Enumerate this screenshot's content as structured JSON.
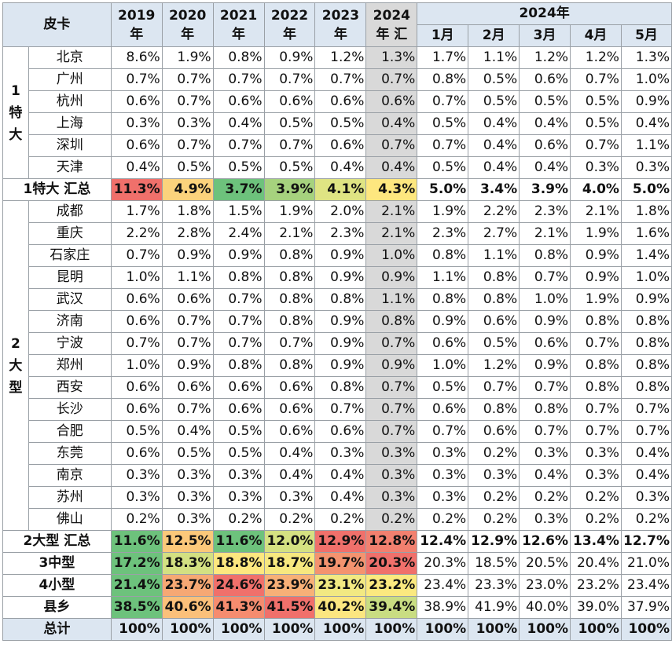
{
  "chart_data": {
    "type": "table",
    "corner_label": "皮卡",
    "year_headers": [
      [
        "2019",
        "年"
      ],
      [
        "2020",
        "年"
      ],
      [
        "2021",
        "年"
      ],
      [
        "2022",
        "年"
      ],
      [
        "2023",
        "年"
      ],
      [
        "2024",
        "年 汇"
      ]
    ],
    "month_group_label": "2024年",
    "month_headers": [
      "1月",
      "2月",
      "3月",
      "4月",
      "5月"
    ],
    "groups": [
      {
        "label": "1特大",
        "rows": [
          {
            "city": "北京",
            "values": [
              "8.6%",
              "1.9%",
              "0.8%",
              "0.9%",
              "1.2%",
              "1.3%",
              "1.7%",
              "1.1%",
              "1.2%",
              "1.2%",
              "1.3%"
            ]
          },
          {
            "city": "广州",
            "values": [
              "0.7%",
              "0.7%",
              "0.7%",
              "0.7%",
              "0.7%",
              "0.7%",
              "0.8%",
              "0.5%",
              "0.6%",
              "0.7%",
              "1.0%"
            ]
          },
          {
            "city": "杭州",
            "values": [
              "0.6%",
              "0.7%",
              "0.6%",
              "0.6%",
              "0.6%",
              "0.6%",
              "0.7%",
              "0.5%",
              "0.5%",
              "0.5%",
              "0.9%"
            ]
          },
          {
            "city": "上海",
            "values": [
              "0.3%",
              "0.3%",
              "0.4%",
              "0.5%",
              "0.5%",
              "0.4%",
              "0.5%",
              "0.4%",
              "0.4%",
              "0.5%",
              "0.4%"
            ]
          },
          {
            "city": "深圳",
            "values": [
              "0.6%",
              "0.7%",
              "0.7%",
              "0.7%",
              "0.6%",
              "0.7%",
              "0.7%",
              "0.4%",
              "0.6%",
              "0.7%",
              "1.1%"
            ]
          },
          {
            "city": "天津",
            "values": [
              "0.4%",
              "0.5%",
              "0.5%",
              "0.5%",
              "0.4%",
              "0.4%",
              "0.5%",
              "0.4%",
              "0.4%",
              "0.3%",
              "0.3%"
            ]
          }
        ],
        "summary": {
          "label": "1特大 汇总",
          "values": [
            "11.3%",
            "4.9%",
            "3.7%",
            "3.9%",
            "4.1%",
            "4.3%",
            "5.0%",
            "3.4%",
            "3.9%",
            "4.0%",
            "5.0%"
          ],
          "colors": [
            "#f0706b",
            "#fbd37c",
            "#6dc27c",
            "#a6d27e",
            "#dfe483",
            "#fde77f"
          ]
        }
      },
      {
        "label": "2大型",
        "rows": [
          {
            "city": "成都",
            "values": [
              "1.7%",
              "1.8%",
              "1.5%",
              "1.9%",
              "2.0%",
              "2.1%",
              "1.9%",
              "2.2%",
              "2.3%",
              "2.1%",
              "1.8%"
            ]
          },
          {
            "city": "重庆",
            "values": [
              "2.2%",
              "2.8%",
              "2.4%",
              "2.1%",
              "2.3%",
              "2.1%",
              "2.3%",
              "2.7%",
              "2.1%",
              "1.9%",
              "1.6%"
            ]
          },
          {
            "city": "石家庄",
            "values": [
              "0.7%",
              "0.9%",
              "0.9%",
              "0.8%",
              "0.9%",
              "1.0%",
              "0.8%",
              "1.1%",
              "0.8%",
              "0.9%",
              "1.4%"
            ]
          },
          {
            "city": "昆明",
            "values": [
              "1.0%",
              "1.1%",
              "0.8%",
              "0.8%",
              "0.9%",
              "0.9%",
              "1.1%",
              "0.8%",
              "0.7%",
              "0.9%",
              "1.0%"
            ]
          },
          {
            "city": "武汉",
            "values": [
              "0.6%",
              "0.6%",
              "0.7%",
              "0.8%",
              "0.8%",
              "1.1%",
              "0.8%",
              "0.8%",
              "1.0%",
              "1.9%",
              "0.9%"
            ]
          },
          {
            "city": "济南",
            "values": [
              "0.6%",
              "0.7%",
              "0.7%",
              "0.8%",
              "0.9%",
              "0.8%",
              "0.9%",
              "0.6%",
              "0.9%",
              "0.8%",
              "0.8%"
            ]
          },
          {
            "city": "宁波",
            "values": [
              "0.7%",
              "0.7%",
              "0.7%",
              "0.7%",
              "0.9%",
              "0.7%",
              "0.6%",
              "0.5%",
              "0.6%",
              "0.7%",
              "0.8%"
            ]
          },
          {
            "city": "郑州",
            "values": [
              "1.0%",
              "0.9%",
              "0.8%",
              "0.8%",
              "0.9%",
              "0.9%",
              "1.0%",
              "1.2%",
              "0.9%",
              "0.8%",
              "0.8%"
            ]
          },
          {
            "city": "西安",
            "values": [
              "0.6%",
              "0.6%",
              "0.6%",
              "0.6%",
              "0.8%",
              "0.7%",
              "0.5%",
              "0.7%",
              "0.7%",
              "0.8%",
              "0.8%"
            ]
          },
          {
            "city": "长沙",
            "values": [
              "0.6%",
              "0.7%",
              "0.6%",
              "0.6%",
              "0.7%",
              "0.7%",
              "0.6%",
              "0.8%",
              "0.8%",
              "0.7%",
              "0.7%"
            ]
          },
          {
            "city": "合肥",
            "values": [
              "0.5%",
              "0.4%",
              "0.5%",
              "0.6%",
              "0.6%",
              "0.7%",
              "0.7%",
              "0.6%",
              "0.7%",
              "0.7%",
              "0.7%"
            ]
          },
          {
            "city": "东莞",
            "values": [
              "0.6%",
              "0.5%",
              "0.5%",
              "0.4%",
              "0.3%",
              "0.3%",
              "0.3%",
              "0.2%",
              "0.3%",
              "0.3%",
              "0.4%"
            ]
          },
          {
            "city": "南京",
            "values": [
              "0.3%",
              "0.3%",
              "0.3%",
              "0.4%",
              "0.4%",
              "0.3%",
              "0.3%",
              "0.3%",
              "0.4%",
              "0.3%",
              "0.4%"
            ]
          },
          {
            "city": "苏州",
            "values": [
              "0.3%",
              "0.3%",
              "0.3%",
              "0.3%",
              "0.4%",
              "0.3%",
              "0.3%",
              "0.2%",
              "0.2%",
              "0.2%",
              "0.3%"
            ]
          },
          {
            "city": "佛山",
            "values": [
              "0.2%",
              "0.3%",
              "0.2%",
              "0.2%",
              "0.2%",
              "0.2%",
              "0.2%",
              "0.2%",
              "0.3%",
              "0.2%",
              "0.2%"
            ]
          }
        ],
        "summary": {
          "label": "2大型 汇总",
          "values": [
            "11.6%",
            "12.5%",
            "11.6%",
            "12.0%",
            "12.9%",
            "12.8%",
            "12.4%",
            "12.9%",
            "12.6%",
            "13.4%",
            "12.7%"
          ],
          "colors": [
            "#6dc27c",
            "#fbc87a",
            "#6dc27c",
            "#d5e182",
            "#f0706b",
            "#f2806f"
          ]
        }
      }
    ],
    "others": [
      {
        "label": "3中型",
        "values": [
          "17.2%",
          "18.3%",
          "18.8%",
          "18.7%",
          "19.7%",
          "20.3%",
          "20.3%",
          "18.5%",
          "20.5%",
          "20.4%",
          "21.0%"
        ],
        "colors": [
          "#6dc27c",
          "#d3e082",
          "#fde77f",
          "#f7e87f",
          "#f4936f",
          "#f0706b"
        ]
      },
      {
        "label": "4小型",
        "values": [
          "21.4%",
          "23.7%",
          "24.6%",
          "23.9%",
          "23.1%",
          "23.2%",
          "23.4%",
          "23.3%",
          "23.0%",
          "23.2%",
          "23.4%"
        ],
        "colors": [
          "#6dc27c",
          "#f6a874",
          "#f0706b",
          "#f7b077",
          "#f2e982",
          "#fbe97f"
        ]
      },
      {
        "label": "县乡",
        "values": [
          "38.5%",
          "40.6%",
          "41.3%",
          "41.5%",
          "40.2%",
          "39.4%",
          "38.9%",
          "41.9%",
          "40.0%",
          "39.0%",
          "37.9%"
        ],
        "colors": [
          "#6dc27c",
          "#fbc07a",
          "#f58c6f",
          "#f0706b",
          "#fce680",
          "#c9dd82"
        ]
      }
    ],
    "total": {
      "label": "总计",
      "values": [
        "100%",
        "100%",
        "100%",
        "100%",
        "100%",
        "100%",
        "100%",
        "100%",
        "100%",
        "100%",
        "100%"
      ]
    }
  }
}
